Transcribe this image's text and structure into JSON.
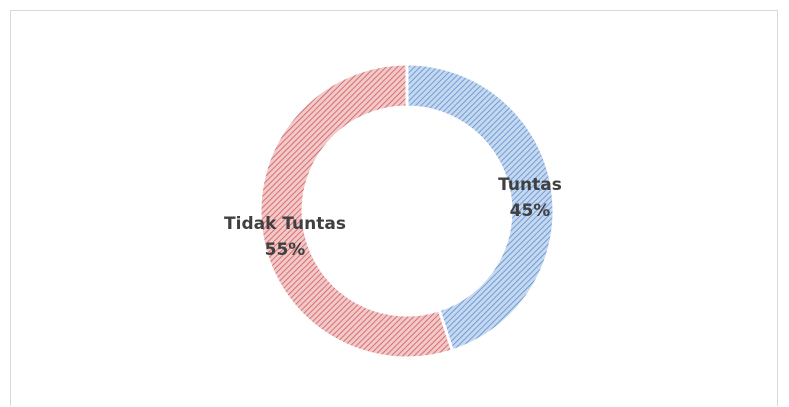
{
  "chart_data": {
    "type": "pie",
    "variant": "donut",
    "categories": [
      "Tuntas",
      "Tidak Tuntas"
    ],
    "values": [
      45,
      55
    ],
    "unit": "%",
    "labels": [
      {
        "name": "Tuntas",
        "percent": "45%"
      },
      {
        "name": "Tidak Tuntas",
        "percent": "55%"
      }
    ],
    "colors": {
      "Tuntas": "#8eb4e3",
      "Tidak Tuntas": "#e6898a"
    },
    "legend": "none",
    "title": ""
  }
}
